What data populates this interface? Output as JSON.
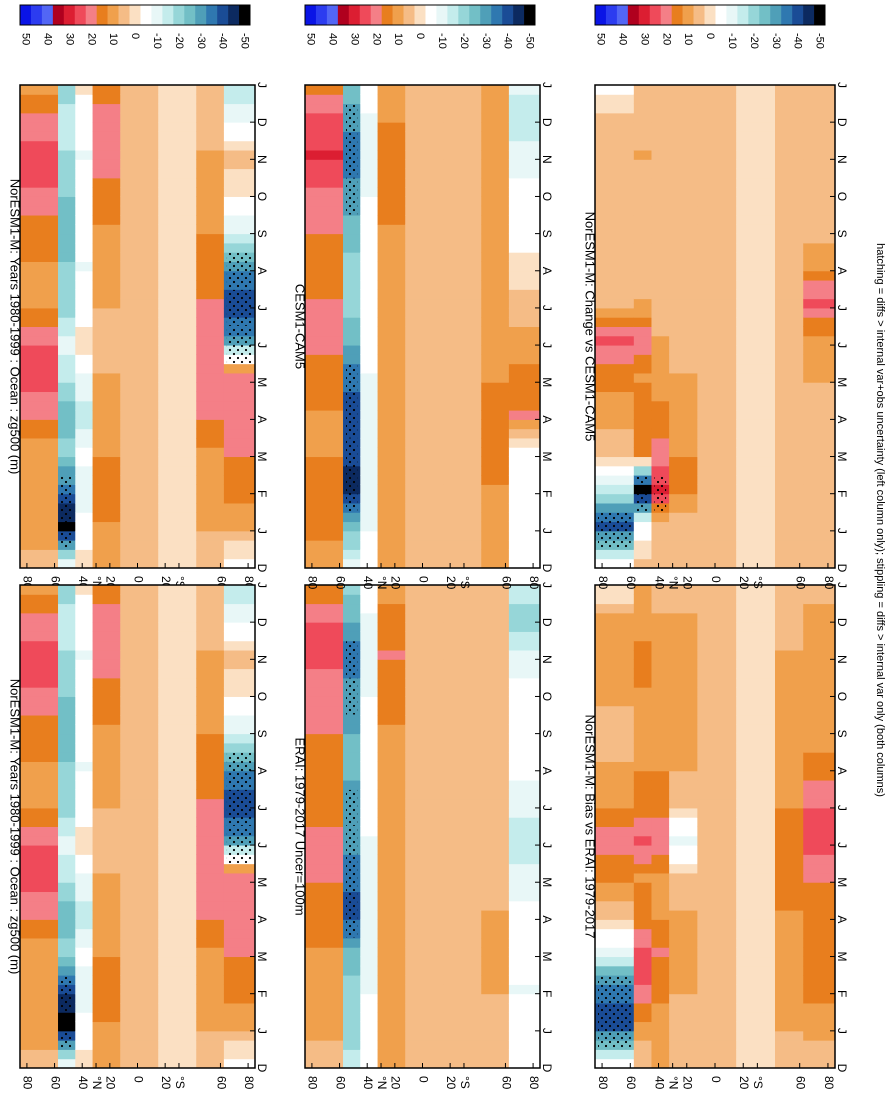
{
  "figure": {
    "footnote": "hatching = diffs > internal var+obs uncertainty (left column only); stippling = diffs > internal var only (both columns)",
    "background": "#ffffff"
  },
  "colorbar": {
    "levels": [
      50,
      45,
      40,
      35,
      30,
      25,
      20,
      15,
      10,
      5,
      0,
      -5,
      -10,
      -15,
      -20,
      -25,
      -30,
      -35,
      -40,
      -45,
      -50
    ],
    "labels": [
      "50",
      "40",
      "30",
      "20",
      "10",
      "0",
      "-10",
      "-20",
      "-30",
      "-40",
      "-50"
    ],
    "colors": [
      "#0a14e6",
      "#2c3cf0",
      "#5266f5",
      "#b0001e",
      "#dc1e32",
      "#ef4a5a",
      "#f47f87",
      "#e87e1e",
      "#f0a04c",
      "#f5bc86",
      "#fbe0c3",
      "#ffffff",
      "#e8f7f7",
      "#c4ecec",
      "#96d6d8",
      "#72bfc6",
      "#4f9fb8",
      "#2f78b0",
      "#1a4c96",
      "#0c2a60",
      "#000000"
    ]
  },
  "chart_data": [
    {
      "type": "heatmap",
      "title": "NorESM1-M: Years 1980-1999 : Ocean : zg500 (m)",
      "x_categories": [
        "D",
        "J",
        "F",
        "M",
        "A",
        "M",
        "J",
        "J",
        "A",
        "S",
        "O",
        "N",
        "D",
        "J"
      ],
      "y_ticks": [
        "80",
        "60",
        "40",
        "°N",
        "20",
        "0",
        "20",
        "°S",
        "60",
        "80"
      ],
      "bands": [
        {
          "lat": 65,
          "values": [
            5,
            12,
            10,
            8,
            18,
            25,
            22,
            10,
            12,
            15,
            22,
            25,
            20,
            10
          ]
        },
        {
          "lat": 50,
          "values": [
            -12,
            -50,
            -35,
            -20,
            -25,
            -15,
            -10,
            -20,
            -22,
            -25,
            -22,
            -18,
            -15,
            -20
          ]
        },
        {
          "lat": 40,
          "values": [
            0,
            -5,
            -10,
            -5,
            -15,
            -8,
            0,
            -5,
            -8,
            -5,
            -5,
            -8,
            -5,
            0
          ]
        },
        {
          "lat": 25,
          "values": [
            10,
            12,
            15,
            12,
            10,
            8,
            5,
            8,
            10,
            12,
            15,
            22,
            20,
            12
          ]
        },
        {
          "lat": 0,
          "values": [
            5,
            5,
            5,
            5,
            5,
            5,
            5,
            5,
            5,
            5,
            5,
            5,
            5,
            5
          ]
        },
        {
          "lat": -30,
          "values": [
            2,
            2,
            2,
            2,
            2,
            2,
            2,
            2,
            2,
            2,
            2,
            2,
            2,
            2
          ]
        },
        {
          "lat": -55,
          "values": [
            5,
            8,
            10,
            12,
            18,
            22,
            22,
            18,
            15,
            12,
            10,
            8,
            5,
            5
          ]
        },
        {
          "lat": -70,
          "values": [
            -5,
            10,
            15,
            18,
            20,
            22,
            -30,
            -40,
            -30,
            -10,
            0,
            5,
            -10,
            -15
          ]
        }
      ]
    },
    {
      "type": "heatmap",
      "title": "NorESM1-M: Years 1980-1999 : Ocean : zg500 (m)",
      "x_categories": [
        "D",
        "J",
        "F",
        "M",
        "A",
        "M",
        "J",
        "J",
        "A",
        "S",
        "O",
        "N",
        "D",
        "J"
      ],
      "y_ticks": [
        "80",
        "60",
        "40",
        "°N",
        "20",
        "0",
        "20",
        "°S",
        "60",
        "80"
      ],
      "bands": [
        {
          "lat": 65,
          "values": [
            5,
            12,
            10,
            8,
            18,
            25,
            22,
            10,
            12,
            15,
            22,
            25,
            20,
            10
          ]
        },
        {
          "lat": 50,
          "values": [
            -12,
            -50,
            -40,
            -20,
            -25,
            -15,
            -10,
            -20,
            -22,
            -25,
            -22,
            -18,
            -15,
            -20
          ]
        },
        {
          "lat": 40,
          "values": [
            0,
            -5,
            -10,
            -5,
            -15,
            -8,
            0,
            -5,
            -8,
            -5,
            -5,
            -8,
            -5,
            0
          ]
        },
        {
          "lat": 25,
          "values": [
            10,
            12,
            15,
            12,
            10,
            8,
            5,
            8,
            10,
            12,
            15,
            22,
            20,
            12
          ]
        },
        {
          "lat": 0,
          "values": [
            5,
            5,
            5,
            5,
            5,
            5,
            5,
            5,
            5,
            5,
            5,
            5,
            5,
            5
          ]
        },
        {
          "lat": -30,
          "values": [
            2,
            2,
            2,
            2,
            2,
            2,
            2,
            2,
            2,
            2,
            2,
            2,
            2,
            2
          ]
        },
        {
          "lat": -55,
          "values": [
            5,
            8,
            10,
            12,
            18,
            22,
            22,
            18,
            15,
            12,
            10,
            8,
            5,
            5
          ]
        },
        {
          "lat": -70,
          "values": [
            -5,
            10,
            15,
            18,
            20,
            22,
            -30,
            -40,
            -30,
            -10,
            0,
            5,
            -10,
            -15
          ]
        }
      ]
    },
    {
      "type": "heatmap",
      "title": "ERAI: 1979-2017 Uncer=100m",
      "x_categories": [
        "D",
        "J",
        "F",
        "M",
        "A",
        "M",
        "J",
        "J",
        "A",
        "S",
        "O",
        "N",
        "D",
        "J"
      ],
      "y_ticks": [
        "80",
        "60",
        "40",
        "°N",
        "20",
        "0",
        "20",
        "°S",
        "60",
        "80"
      ],
      "bands": [
        {
          "lat": 65,
          "values": [
            5,
            10,
            12,
            12,
            15,
            18,
            20,
            15,
            15,
            18,
            20,
            25,
            22,
            12
          ]
        },
        {
          "lat": 50,
          "values": [
            -15,
            -20,
            -20,
            -25,
            -40,
            -35,
            -30,
            -30,
            -25,
            -28,
            -30,
            -35,
            -25,
            -20
          ]
        },
        {
          "lat": 40,
          "values": [
            -5,
            -5,
            -8,
            -10,
            -12,
            -10,
            -8,
            -5,
            -5,
            -5,
            -8,
            -10,
            -8,
            -5
          ]
        },
        {
          "lat": 25,
          "values": [
            10,
            10,
            12,
            10,
            10,
            8,
            8,
            10,
            12,
            12,
            15,
            18,
            15,
            10
          ]
        },
        {
          "lat": 0,
          "values": [
            5,
            5,
            5,
            5,
            5,
            5,
            5,
            5,
            5,
            5,
            5,
            5,
            5,
            5
          ]
        },
        {
          "lat": -30,
          "values": [
            3,
            3,
            3,
            3,
            3,
            3,
            3,
            3,
            3,
            3,
            3,
            3,
            3,
            3
          ]
        },
        {
          "lat": -55,
          "values": [
            5,
            5,
            8,
            10,
            8,
            5,
            5,
            5,
            5,
            5,
            5,
            5,
            5,
            5
          ]
        },
        {
          "lat": -70,
          "values": [
            -5,
            -5,
            -8,
            -5,
            -5,
            -10,
            -15,
            -10,
            -5,
            -5,
            -5,
            -10,
            -20,
            -10
          ]
        }
      ]
    },
    {
      "type": "heatmap",
      "title": "CESM1-CAM5",
      "x_categories": [
        "D",
        "J",
        "F",
        "M",
        "A",
        "M",
        "J",
        "J",
        "A",
        "S",
        "O",
        "N",
        "D",
        "J"
      ],
      "y_ticks": [
        "80",
        "60",
        "40",
        "°N",
        "20",
        "0",
        "20",
        "°S",
        "60",
        "80"
      ],
      "bands": [
        {
          "lat": 65,
          "values": [
            8,
            15,
            15,
            12,
            12,
            15,
            20,
            18,
            15,
            18,
            22,
            28,
            25,
            15
          ]
        },
        {
          "lat": 50,
          "values": [
            -10,
            -25,
            -45,
            -40,
            -40,
            -35,
            -25,
            -20,
            -20,
            -25,
            -30,
            -35,
            -30,
            -20
          ]
        },
        {
          "lat": 40,
          "values": [
            -5,
            -8,
            -12,
            -10,
            -10,
            -8,
            -5,
            -5,
            -5,
            -5,
            -8,
            -10,
            -8,
            -5
          ]
        },
        {
          "lat": 25,
          "values": [
            10,
            10,
            10,
            10,
            10,
            8,
            8,
            10,
            12,
            12,
            15,
            15,
            12,
            10
          ]
        },
        {
          "lat": 0,
          "values": [
            5,
            5,
            5,
            5,
            5,
            5,
            5,
            5,
            5,
            5,
            5,
            5,
            5,
            5
          ]
        },
        {
          "lat": -30,
          "values": [
            3,
            3,
            3,
            3,
            3,
            3,
            3,
            3,
            3,
            3,
            3,
            3,
            3,
            3
          ]
        },
        {
          "lat": -55,
          "values": [
            8,
            10,
            12,
            15,
            15,
            12,
            10,
            10,
            10,
            8,
            8,
            8,
            8,
            8
          ]
        },
        {
          "lat": -70,
          "values": [
            -5,
            -5,
            -5,
            -5,
            18,
            15,
            10,
            5,
            0,
            -5,
            -5,
            -10,
            -15,
            -10
          ]
        }
      ]
    },
    {
      "type": "heatmap",
      "title": "NorESM1-M: Bias vs ERAI: 1979-2017",
      "x_categories": [
        "D",
        "J",
        "F",
        "M",
        "A",
        "M",
        "J",
        "J",
        "A",
        "S",
        "O",
        "N",
        "D",
        "J"
      ],
      "y_ticks": [
        "80",
        "60",
        "40",
        "°N",
        "20",
        "0",
        "20",
        "°S",
        "60",
        "80"
      ],
      "bands": [
        {
          "lat": 65,
          "values": [
            -5,
            -40,
            -35,
            -10,
            5,
            15,
            20,
            12,
            8,
            5,
            10,
            12,
            8,
            -5
          ]
        },
        {
          "lat": 50,
          "values": [
            5,
            10,
            22,
            25,
            15,
            12,
            25,
            15,
            12,
            10,
            12,
            15,
            10,
            8
          ]
        },
        {
          "lat": 40,
          "values": [
            8,
            10,
            15,
            18,
            12,
            10,
            22,
            15,
            12,
            10,
            8,
            10,
            8,
            5
          ]
        },
        {
          "lat": 25,
          "values": [
            5,
            5,
            8,
            8,
            8,
            5,
            -10,
            5,
            8,
            8,
            8,
            10,
            8,
            5
          ]
        },
        {
          "lat": 0,
          "values": [
            3,
            3,
            3,
            3,
            3,
            3,
            3,
            3,
            3,
            3,
            3,
            3,
            3,
            3
          ]
        },
        {
          "lat": -30,
          "values": [
            2,
            2,
            2,
            2,
            2,
            2,
            2,
            2,
            2,
            2,
            2,
            2,
            2,
            2
          ]
        },
        {
          "lat": -55,
          "values": [
            5,
            8,
            10,
            12,
            12,
            15,
            15,
            12,
            10,
            8,
            8,
            8,
            5,
            5
          ]
        },
        {
          "lat": -70,
          "values": [
            5,
            10,
            15,
            15,
            15,
            18,
            25,
            22,
            15,
            10,
            10,
            12,
            10,
            5
          ]
        }
      ]
    },
    {
      "type": "heatmap",
      "title": "NorESM1-M: Change vs CESM1-CAM5",
      "x_categories": [
        "D",
        "J",
        "F",
        "M",
        "A",
        "M",
        "J",
        "J",
        "A",
        "S",
        "O",
        "N",
        "D",
        "J"
      ],
      "y_ticks": [
        "80",
        "60",
        "40",
        "°N",
        "20",
        "0",
        "20",
        "°S",
        "60",
        "80"
      ],
      "bands": [
        {
          "lat": 65,
          "values": [
            -5,
            -40,
            -15,
            5,
            10,
            15,
            25,
            5,
            3,
            3,
            5,
            5,
            5,
            -5
          ]
        },
        {
          "lat": 50,
          "values": [
            5,
            -5,
            -50,
            15,
            15,
            12,
            22,
            8,
            5,
            5,
            5,
            8,
            5,
            5
          ]
        },
        {
          "lat": 40,
          "values": [
            5,
            5,
            30,
            20,
            15,
            10,
            8,
            5,
            5,
            5,
            5,
            5,
            5,
            5
          ]
        },
        {
          "lat": 25,
          "values": [
            3,
            5,
            15,
            12,
            10,
            8,
            5,
            5,
            5,
            5,
            5,
            5,
            3,
            3
          ]
        },
        {
          "lat": 0,
          "values": [
            3,
            3,
            3,
            3,
            3,
            3,
            3,
            3,
            3,
            3,
            3,
            3,
            3,
            3
          ]
        },
        {
          "lat": -30,
          "values": [
            2,
            2,
            2,
            2,
            2,
            2,
            2,
            2,
            2,
            2,
            2,
            2,
            2,
            2
          ]
        },
        {
          "lat": -55,
          "values": [
            3,
            5,
            5,
            5,
            5,
            5,
            5,
            5,
            5,
            5,
            5,
            5,
            3,
            3
          ]
        },
        {
          "lat": -70,
          "values": [
            5,
            5,
            5,
            5,
            5,
            8,
            10,
            25,
            12,
            5,
            5,
            5,
            5,
            5
          ]
        }
      ]
    }
  ]
}
